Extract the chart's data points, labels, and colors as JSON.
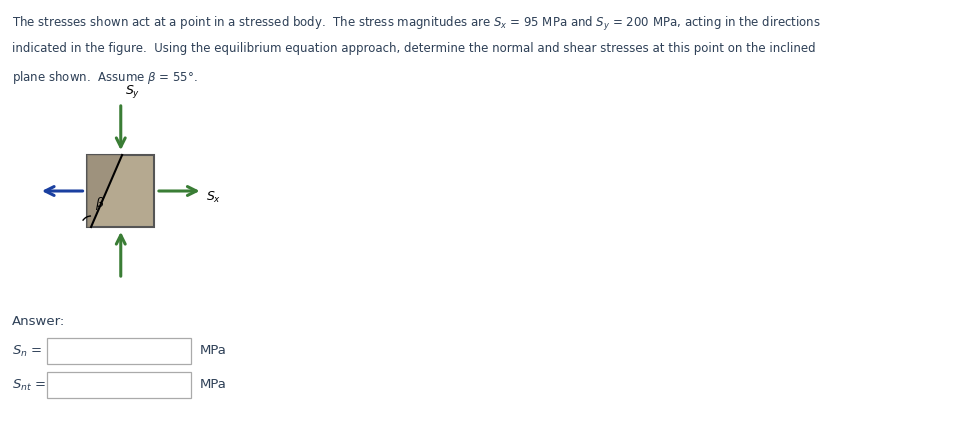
{
  "title_lines": [
    "The stresses shown act at a point in a stressed body.  The stress magnitudes are $S_x$ = 95 MPa and $S_y$ = 200 MPa, acting in the directions",
    "indicated in the figure.  Using the equilibrium equation approach, determine the normal and shear stresses at this point on the inclined",
    "plane shown.  Assume $\\beta$ = 55°."
  ],
  "title_color": "#2E4057",
  "answer_label": "Answer:",
  "sn_label": "$S_n$ =",
  "snt_label": "$S_{nt}$ =",
  "mpa_label": "MPa",
  "arrow_green": "#3a7d35",
  "arrow_blue": "#1a3fa0",
  "box_fill": "#b5a990",
  "box_fill_dark": "#9a8e7a",
  "box_edge": "#555555",
  "beta_label": "$\\beta$",
  "sx_label": "$S_x$",
  "sy_label": "$S_y$",
  "answer_color": "#2E4057",
  "fig_width": 9.68,
  "fig_height": 4.33
}
